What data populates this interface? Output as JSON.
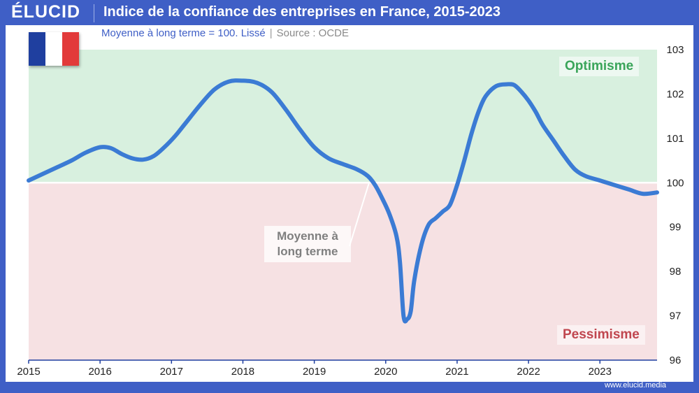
{
  "header": {
    "logo": "ÉLUCID",
    "title": "Indice de la confiance des entreprises en France, 2015-2023"
  },
  "subtitle": {
    "main": "Moyenne à long terme = 100. Lissé",
    "separator": "|",
    "source": "Source : OCDE"
  },
  "flag": {
    "colors": [
      "#1f3f9f",
      "#ffffff",
      "#e23a3a"
    ]
  },
  "zones": {
    "optimism": "Optimisme",
    "pessimism": "Pessimisme"
  },
  "annotation": {
    "line1": "Moyenne à",
    "line2": "long terme"
  },
  "footer": {
    "site": "www.elucid.media"
  },
  "colors": {
    "line": "#3b7bd4",
    "optimism_bg": "#d8f0df",
    "pessimism_bg": "#f6e1e3",
    "frame": "#3f5fc6"
  },
  "chart_data": {
    "type": "line",
    "title": "Indice de la confiance des entreprises en France, 2015-2023",
    "xlabel": "",
    "ylabel": "",
    "xlim": [
      2015,
      2023.8
    ],
    "ylim": [
      96,
      103
    ],
    "y_ticks": [
      96,
      97,
      98,
      99,
      100,
      101,
      102,
      103
    ],
    "x_ticks": [
      2015,
      2016,
      2017,
      2018,
      2019,
      2020,
      2021,
      2022,
      2023
    ],
    "reference_line": 100,
    "series": [
      {
        "x": [
          2015.0,
          2015.2,
          2015.4,
          2015.6,
          2015.8,
          2016.0,
          2016.15,
          2016.3,
          2016.45,
          2016.6,
          2016.75,
          2016.9,
          2017.05,
          2017.2,
          2017.4,
          2017.6,
          2017.8,
          2018.0,
          2018.2,
          2018.4,
          2018.6,
          2018.8,
          2019.0,
          2019.2,
          2019.4,
          2019.6,
          2019.75,
          2019.85,
          2019.95,
          2020.05,
          2020.15,
          2020.2,
          2020.25,
          2020.3,
          2020.35,
          2020.4,
          2020.5,
          2020.6,
          2020.7,
          2020.8,
          2020.9,
          2021.0,
          2021.1,
          2021.2,
          2021.3,
          2021.4,
          2021.55,
          2021.7,
          2021.8,
          2021.9,
          2022.0,
          2022.1,
          2022.2,
          2022.35,
          2022.5,
          2022.65,
          2022.8,
          2023.0,
          2023.2,
          2023.4,
          2023.6,
          2023.8
        ],
        "y": [
          100.05,
          100.2,
          100.35,
          100.5,
          100.68,
          100.8,
          100.78,
          100.65,
          100.55,
          100.52,
          100.6,
          100.8,
          101.05,
          101.35,
          101.75,
          102.1,
          102.28,
          102.3,
          102.25,
          102.05,
          101.65,
          101.2,
          100.8,
          100.55,
          100.42,
          100.3,
          100.15,
          99.95,
          99.65,
          99.3,
          98.8,
          98.2,
          97.0,
          96.92,
          97.1,
          97.8,
          98.6,
          99.05,
          99.2,
          99.35,
          99.5,
          99.95,
          100.5,
          101.1,
          101.6,
          101.95,
          102.18,
          102.22,
          102.2,
          102.05,
          101.85,
          101.6,
          101.3,
          100.95,
          100.6,
          100.3,
          100.15,
          100.05,
          99.95,
          99.85,
          99.75,
          99.78
        ]
      }
    ],
    "legend": "none",
    "grid": false
  }
}
